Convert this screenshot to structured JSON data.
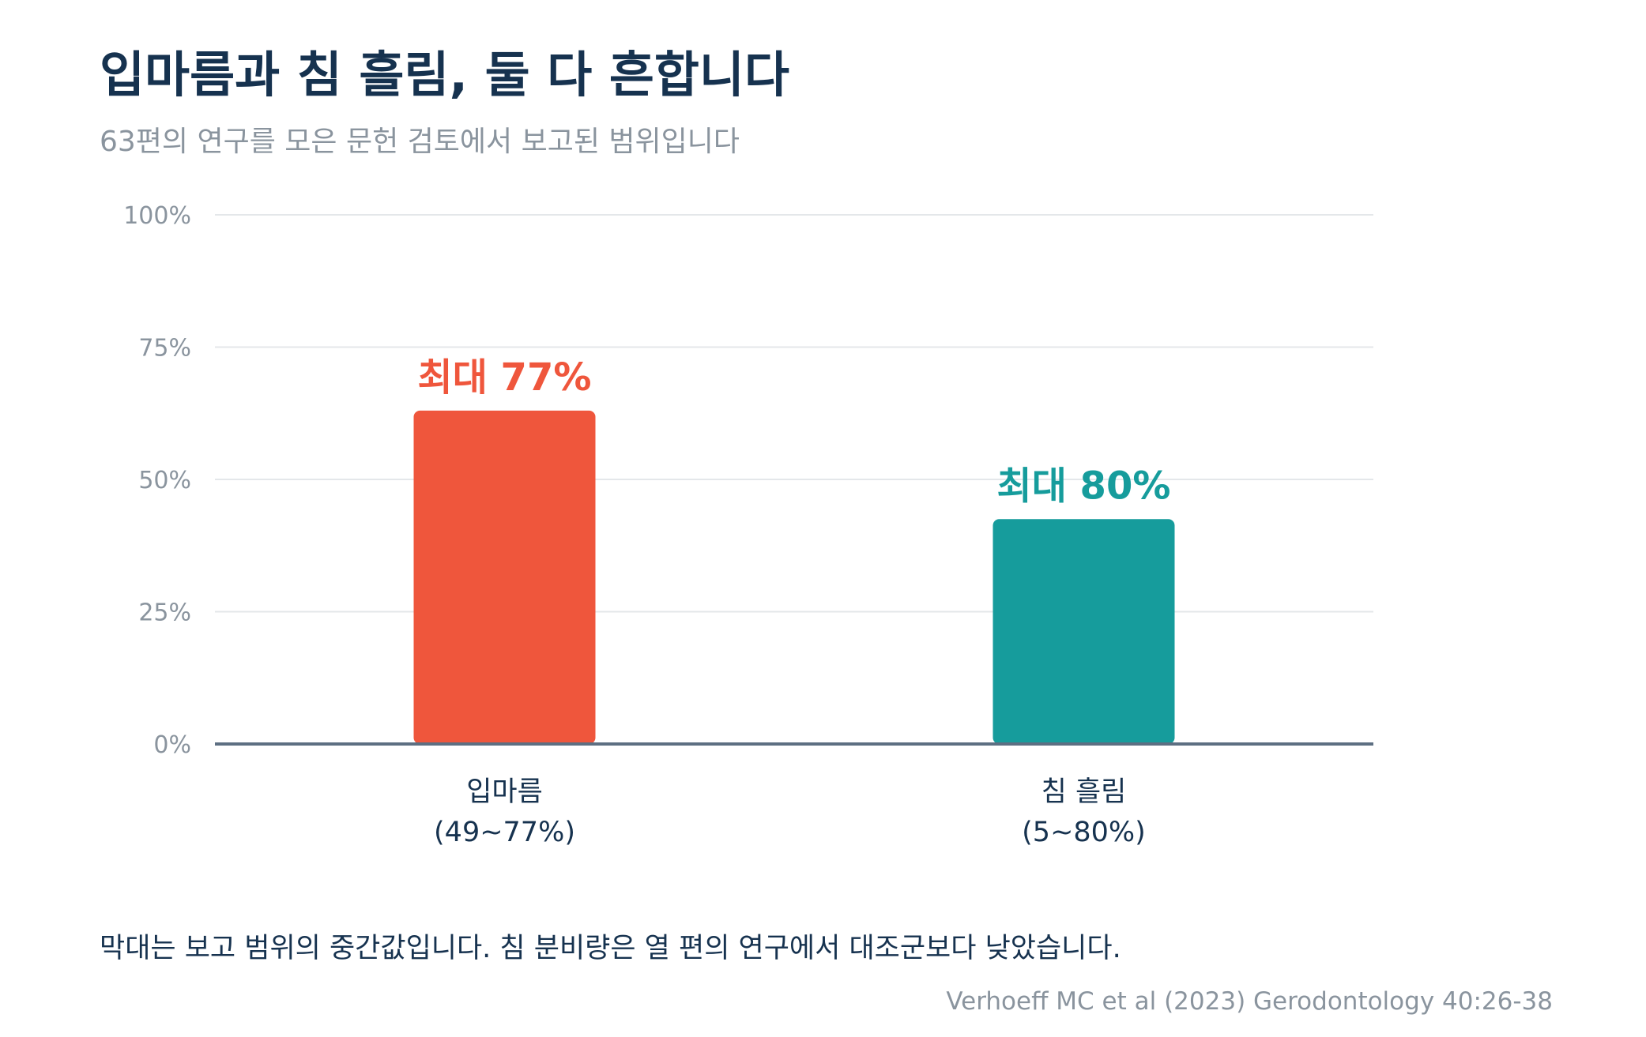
{
  "header": {
    "title": "입마름과 침 흘림, 둘 다 흔합니다",
    "subtitle": "63편의 연구를 모은 문헌 검토에서 보고된 범위입니다"
  },
  "footer": {
    "note": "막대는 보고 범위의 중간값입니다. 침 분비량은 열 편의 연구에서 대조군보다 낮았습니다.",
    "source": "Verhoeff MC et al (2023) Gerodontology 40:26-38"
  },
  "chart_data": {
    "type": "bar",
    "title": "입마름과 침 흘림, 둘 다 흔합니다",
    "subtitle": "63편의 연구를 모은 문헌 검토에서 보고된 범위입니다",
    "ylim": [
      0,
      100
    ],
    "yticks": [
      0,
      25,
      50,
      75,
      100
    ],
    "ytick_suffix": "%",
    "grid": true,
    "bars": [
      {
        "category_line1": "입마름",
        "category_line2": "(49~77%)",
        "value": 63,
        "range": [
          49,
          77
        ],
        "label": "최대 77%",
        "color": "#ef563c"
      },
      {
        "category_line1": "침 흘림",
        "category_line2": "(5~80%)",
        "value": 42.5,
        "range": [
          5,
          80
        ],
        "label": "최대 80%",
        "color": "#169c9c"
      }
    ]
  }
}
